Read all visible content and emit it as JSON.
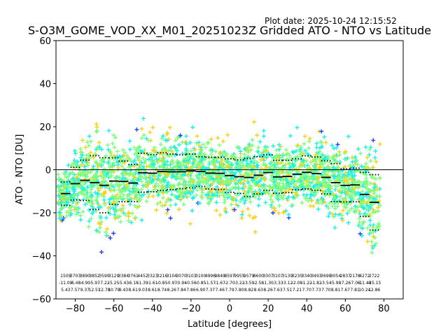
{
  "plot_date": "Plot date: 2025-10-24 12:15:52",
  "chart_data": {
    "type": "scatter",
    "title": "S-O3M_GOME_VOD_XX_M01_20251023Z Gridded ATO - NTO vs Latitude",
    "xlabel": "Latitude [degrees]",
    "ylabel": "ATO - NTO [DU]",
    "xlim": [
      -90,
      90
    ],
    "ylim": [
      -60,
      60
    ],
    "x_ticks": [
      -80,
      -60,
      -40,
      -20,
      0,
      20,
      40,
      60,
      80
    ],
    "y_ticks": [
      -60,
      -40,
      -20,
      0,
      20,
      40,
      60
    ],
    "zero_line": 0,
    "marker": "plus",
    "colors": {
      "cyan": "#19f2e6",
      "green": "#7dff7a",
      "yellow": "#f7d117",
      "blue": "#1f3fff",
      "mean": "#000000"
    },
    "bin_latitudes": [
      -85,
      -80,
      -75,
      -70,
      -65,
      -60,
      -55,
      -50,
      -45,
      -40,
      -35,
      -30,
      -25,
      -20,
      -15,
      -10,
      -5,
      0,
      5,
      10,
      15,
      20,
      25,
      30,
      35,
      40,
      45,
      50,
      55,
      60,
      65,
      70,
      75
    ],
    "series": [
      {
        "name": "mean",
        "style": "dash",
        "values": [
          -11.09,
          -6.48,
          -4.9,
          -5.97,
          -7.22,
          -5.25,
          -5.43,
          -6.18,
          -1.39,
          -1.61,
          -0.85,
          -0.97,
          -0.94,
          -0.56,
          -0.85,
          -1.57,
          -1.67,
          -2.7,
          -3.22,
          -3.59,
          -2.58,
          -1.3,
          -3.33,
          -3.12,
          -2.08,
          -1.22,
          -1.82,
          -3.54,
          -5.98,
          -7.26,
          -7.06,
          -11.48,
          -15.15
        ]
      },
      {
        "name": "std",
        "style": "dotted",
        "values": [
          5.43,
          7.57,
          9.37,
          12.51,
          12.78,
          10.79,
          9.43,
          8.61,
          9.03,
          8.61,
          8.74,
          8.26,
          7.84,
          7.86,
          6.9,
          7.37,
          7.46,
          7.79,
          7.8,
          8.82,
          8.63,
          8.26,
          7.63,
          7.51,
          7.21,
          7.7,
          7.73,
          7.7,
          8.81,
          7.67,
          7.81,
          10.24,
          12.86
        ]
      },
      {
        "name": "count",
        "values": [
          1509,
          3703,
          3890,
          3852,
          3590,
          3129,
          3384,
          3761,
          4452,
          3323,
          3216,
          3104,
          3070,
          3103,
          3100,
          4996,
          9849,
          8597,
          9955,
          9579,
          8600,
          3307,
          3107,
          3139,
          3230,
          3340,
          3493,
          3698,
          3054,
          2837,
          2178,
          4272,
          2722
        ]
      }
    ]
  }
}
